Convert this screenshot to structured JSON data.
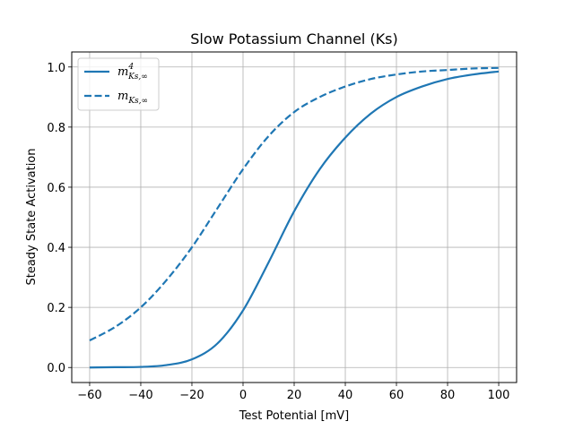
{
  "chart_data": {
    "type": "line",
    "title": "Slow Potassium Channel (Ks)",
    "xlabel": "Test Potential [mV]",
    "ylabel": "Steady State Activation",
    "xlim": [
      -67,
      107
    ],
    "ylim": [
      -0.05,
      1.05
    ],
    "xticks": [
      -60,
      -40,
      -20,
      0,
      20,
      40,
      60,
      80,
      100
    ],
    "xtick_labels": [
      "−60",
      "−40",
      "−20",
      "0",
      "20",
      "40",
      "60",
      "80",
      "100"
    ],
    "yticks": [
      0.0,
      0.2,
      0.4,
      0.6,
      0.8,
      1.0
    ],
    "ytick_labels": [
      "0.0",
      "0.2",
      "0.4",
      "0.6",
      "0.8",
      "1.0"
    ],
    "grid": true,
    "legend_position": "upper-left",
    "color": "#1f77b4",
    "x": [
      -60,
      -50,
      -40,
      -30,
      -20,
      -10,
      0,
      10,
      20,
      30,
      40,
      50,
      60,
      70,
      80,
      90,
      100
    ],
    "series": [
      {
        "name": "m_Ks,∞^4",
        "legend_main": "m",
        "legend_sub": "Ks,∞",
        "legend_sup": "4",
        "style": "solid",
        "values": [
          0.0,
          0.001,
          0.002,
          0.008,
          0.027,
          0.08,
          0.19,
          0.35,
          0.52,
          0.66,
          0.765,
          0.845,
          0.9,
          0.935,
          0.96,
          0.975,
          0.985
        ]
      },
      {
        "name": "m_Ks,∞",
        "legend_main": "m",
        "legend_sub": "Ks,∞",
        "legend_sup": "",
        "style": "dashed",
        "values": [
          0.09,
          0.135,
          0.2,
          0.29,
          0.4,
          0.53,
          0.66,
          0.77,
          0.85,
          0.9,
          0.935,
          0.96,
          0.975,
          0.985,
          0.99,
          0.995,
          0.997
        ]
      }
    ]
  }
}
